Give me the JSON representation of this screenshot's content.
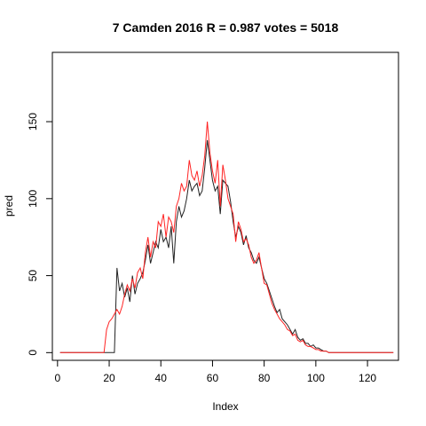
{
  "chart_data": {
    "type": "line",
    "title": "7 Camden 2016 R = 0.987 votes = 5018",
    "xlabel": "Index",
    "ylabel": "pred",
    "xlim": [
      -2,
      132
    ],
    "ylim": [
      -5,
      195
    ],
    "xticks": [
      0,
      20,
      40,
      60,
      80,
      100,
      120
    ],
    "yticks": [
      0,
      50,
      100,
      150
    ],
    "grid": false,
    "series": [
      {
        "color": "#222222",
        "x": [
          1,
          2,
          3,
          4,
          5,
          6,
          7,
          8,
          9,
          10,
          11,
          12,
          13,
          14,
          15,
          16,
          17,
          18,
          19,
          20,
          21,
          22,
          23,
          24,
          25,
          26,
          27,
          28,
          29,
          30,
          31,
          32,
          33,
          34,
          35,
          36,
          37,
          38,
          39,
          40,
          41,
          42,
          43,
          44,
          45,
          46,
          47,
          48,
          49,
          50,
          51,
          52,
          53,
          54,
          55,
          56,
          57,
          58,
          59,
          60,
          61,
          62,
          63,
          64,
          65,
          66,
          67,
          68,
          69,
          70,
          71,
          72,
          73,
          74,
          75,
          76,
          77,
          78,
          79,
          80,
          81,
          82,
          83,
          84,
          85,
          86,
          87,
          88,
          89,
          90,
          91,
          92,
          93,
          94,
          95,
          96,
          97,
          98,
          99,
          100,
          101,
          102,
          103,
          104,
          105,
          106,
          107,
          108,
          109,
          110,
          111,
          112,
          113,
          114,
          115,
          116,
          117,
          118,
          119,
          120,
          121,
          122,
          123,
          124,
          125,
          126,
          127,
          128,
          129,
          130
        ],
        "y": [
          0,
          0,
          0,
          0,
          0,
          0,
          0,
          0,
          0,
          0,
          0,
          0,
          0,
          0,
          0,
          0,
          0,
          0,
          0,
          0,
          0,
          0,
          55,
          40,
          45,
          36,
          42,
          33,
          50,
          38,
          45,
          48,
          52,
          60,
          70,
          58,
          65,
          72,
          68,
          80,
          72,
          75,
          68,
          82,
          58,
          85,
          95,
          88,
          92,
          100,
          112,
          105,
          108,
          110,
          102,
          105,
          120,
          138,
          125,
          112,
          105,
          108,
          90,
          112,
          110,
          108,
          98,
          85,
          75,
          82,
          78,
          70,
          76,
          68,
          65,
          60,
          58,
          62,
          55,
          48,
          45,
          40,
          35,
          30,
          26,
          28,
          22,
          20,
          18,
          15,
          12,
          15,
          10,
          8,
          9,
          6,
          6,
          4,
          5,
          3,
          3,
          2,
          1,
          1,
          0,
          0,
          0,
          0,
          0,
          0,
          0,
          0,
          0,
          0,
          0,
          0,
          0,
          0,
          0,
          0,
          0,
          0,
          0,
          0,
          0,
          0,
          0,
          0,
          0,
          0
        ]
      },
      {
        "color": "#ff2222",
        "x": [
          1,
          2,
          3,
          4,
          5,
          6,
          7,
          8,
          9,
          10,
          11,
          12,
          13,
          14,
          15,
          16,
          17,
          18,
          19,
          20,
          21,
          22,
          23,
          24,
          25,
          26,
          27,
          28,
          29,
          30,
          31,
          32,
          33,
          34,
          35,
          36,
          37,
          38,
          39,
          40,
          41,
          42,
          43,
          44,
          45,
          46,
          47,
          48,
          49,
          50,
          51,
          52,
          53,
          54,
          55,
          56,
          57,
          58,
          59,
          60,
          61,
          62,
          63,
          64,
          65,
          66,
          67,
          68,
          69,
          70,
          71,
          72,
          73,
          74,
          75,
          76,
          77,
          78,
          79,
          80,
          81,
          82,
          83,
          84,
          85,
          86,
          87,
          88,
          89,
          90,
          91,
          92,
          93,
          94,
          95,
          96,
          97,
          98,
          99,
          100,
          101,
          102,
          103,
          104,
          105,
          106,
          107,
          108,
          109,
          110,
          111,
          112,
          113,
          114,
          115,
          116,
          117,
          118,
          119,
          120,
          121,
          122,
          123,
          124,
          125,
          126,
          127,
          128,
          129,
          130
        ],
        "y": [
          0,
          0,
          0,
          0,
          0,
          0,
          0,
          0,
          0,
          0,
          0,
          0,
          0,
          0,
          0,
          0,
          0,
          0,
          15,
          20,
          22,
          25,
          28,
          25,
          30,
          38,
          44,
          40,
          48,
          42,
          52,
          55,
          48,
          65,
          75,
          62,
          72,
          68,
          85,
          82,
          90,
          75,
          88,
          85,
          78,
          95,
          100,
          110,
          105,
          108,
          125,
          115,
          112,
          118,
          108,
          115,
          128,
          150,
          130,
          118,
          110,
          125,
          95,
          122,
          112,
          100,
          95,
          90,
          72,
          85,
          80,
          72,
          74,
          70,
          62,
          58,
          60,
          65,
          55,
          45,
          44,
          38,
          32,
          28,
          25,
          22,
          20,
          18,
          15,
          14,
          11,
          12,
          8,
          7,
          8,
          5,
          4,
          4,
          3,
          2,
          2,
          1,
          1,
          1,
          0,
          0,
          0,
          0,
          0,
          0,
          0,
          0,
          0,
          0,
          0,
          0,
          0,
          0,
          0,
          0,
          0,
          0,
          0,
          0,
          0,
          0,
          0,
          0,
          0,
          0
        ]
      }
    ]
  }
}
